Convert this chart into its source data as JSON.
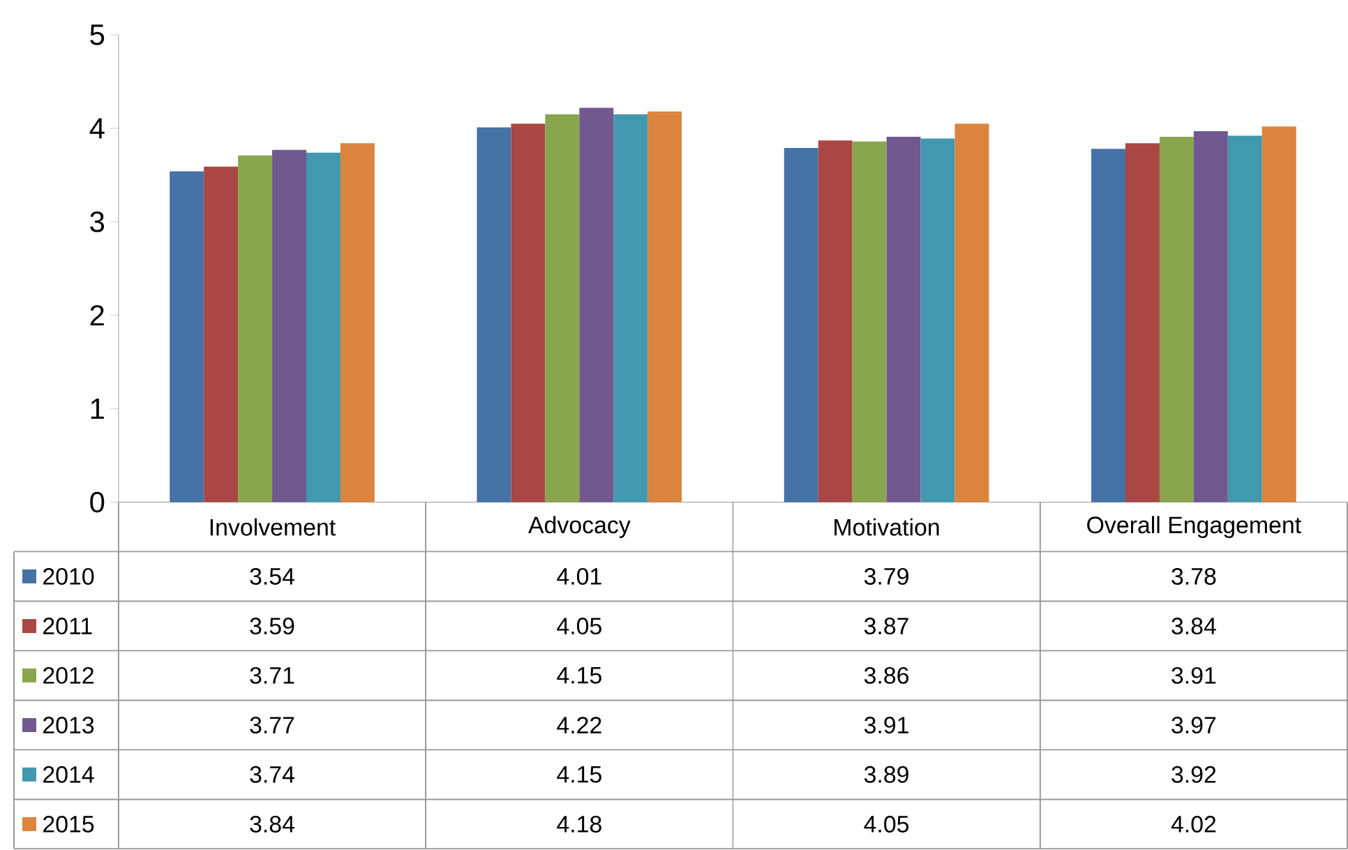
{
  "chart_data": {
    "type": "bar",
    "categories": [
      "Involvement",
      "Advocacy",
      "Motivation",
      "Overall Engagement"
    ],
    "series": [
      {
        "name": "2010",
        "color": "#4572a7",
        "values": [
          3.54,
          4.01,
          3.79,
          3.78
        ]
      },
      {
        "name": "2011",
        "color": "#aa4643",
        "values": [
          3.59,
          4.05,
          3.87,
          3.84
        ]
      },
      {
        "name": "2012",
        "color": "#89a54e",
        "values": [
          3.71,
          4.15,
          3.86,
          3.91
        ]
      },
      {
        "name": "2013",
        "color": "#71588f",
        "values": [
          3.77,
          4.22,
          3.91,
          3.97
        ]
      },
      {
        "name": "2014",
        "color": "#4198af",
        "values": [
          3.74,
          4.15,
          3.89,
          3.92
        ]
      },
      {
        "name": "2015",
        "color": "#db843d",
        "values": [
          3.84,
          4.18,
          4.05,
          4.02
        ]
      }
    ],
    "ylim": [
      0,
      5
    ],
    "yticks": [
      0,
      1,
      2,
      3,
      4,
      5
    ],
    "data_labels": true,
    "legend": "bottom"
  }
}
